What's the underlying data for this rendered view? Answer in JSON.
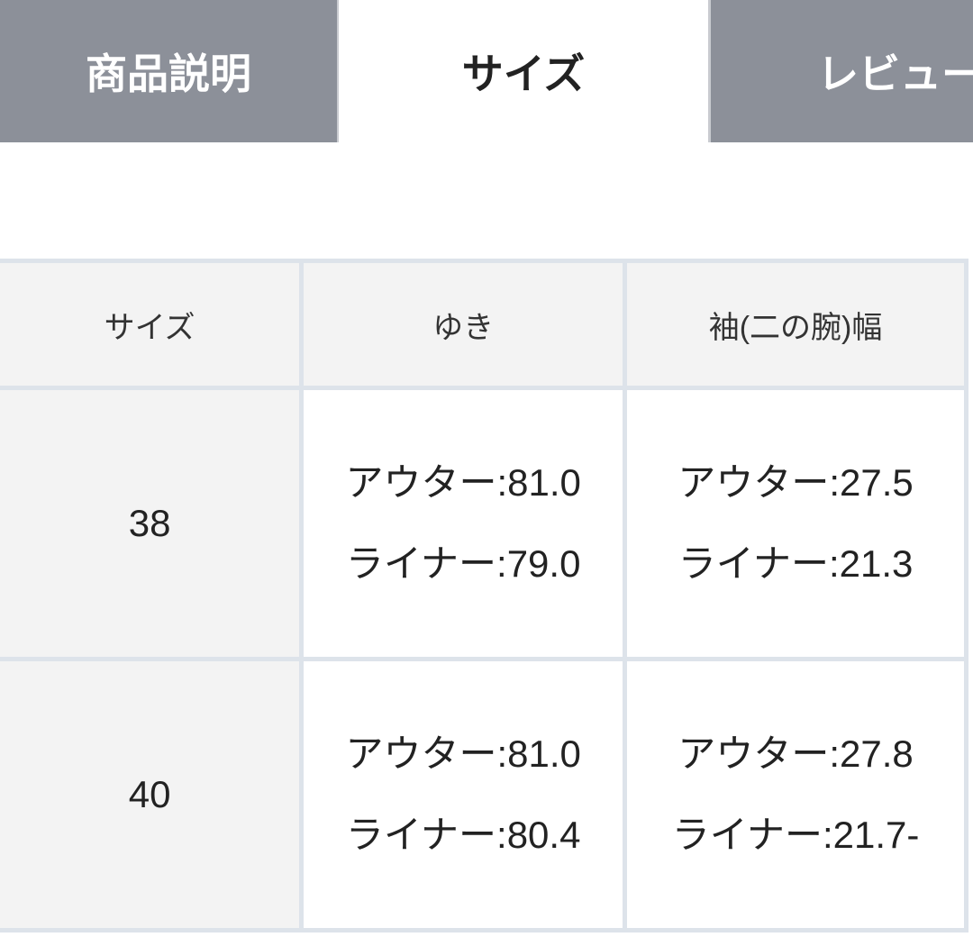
{
  "tabs": [
    {
      "label": "商品説明",
      "active": false
    },
    {
      "label": "サイズ",
      "active": true
    },
    {
      "label": "レビュー",
      "active": false
    }
  ],
  "table": {
    "headers": [
      "サイズ",
      "ゆき",
      "袖(二の腕)幅"
    ],
    "rows": [
      {
        "size": "38",
        "yuki": [
          "アウター:81.0",
          "ライナー:79.0"
        ],
        "sleeve": [
          "アウター:27.5",
          "ライナー:21.3"
        ]
      },
      {
        "size": "40",
        "yuki": [
          "アウター:81.0",
          "ライナー:80.4"
        ],
        "sleeve": [
          "アウター:27.8",
          "ライナー:21.7-"
        ]
      }
    ]
  },
  "colors": {
    "inactive_tab": "#8c9099",
    "border": "#dde3ea",
    "header_bg": "#f3f3f3"
  }
}
